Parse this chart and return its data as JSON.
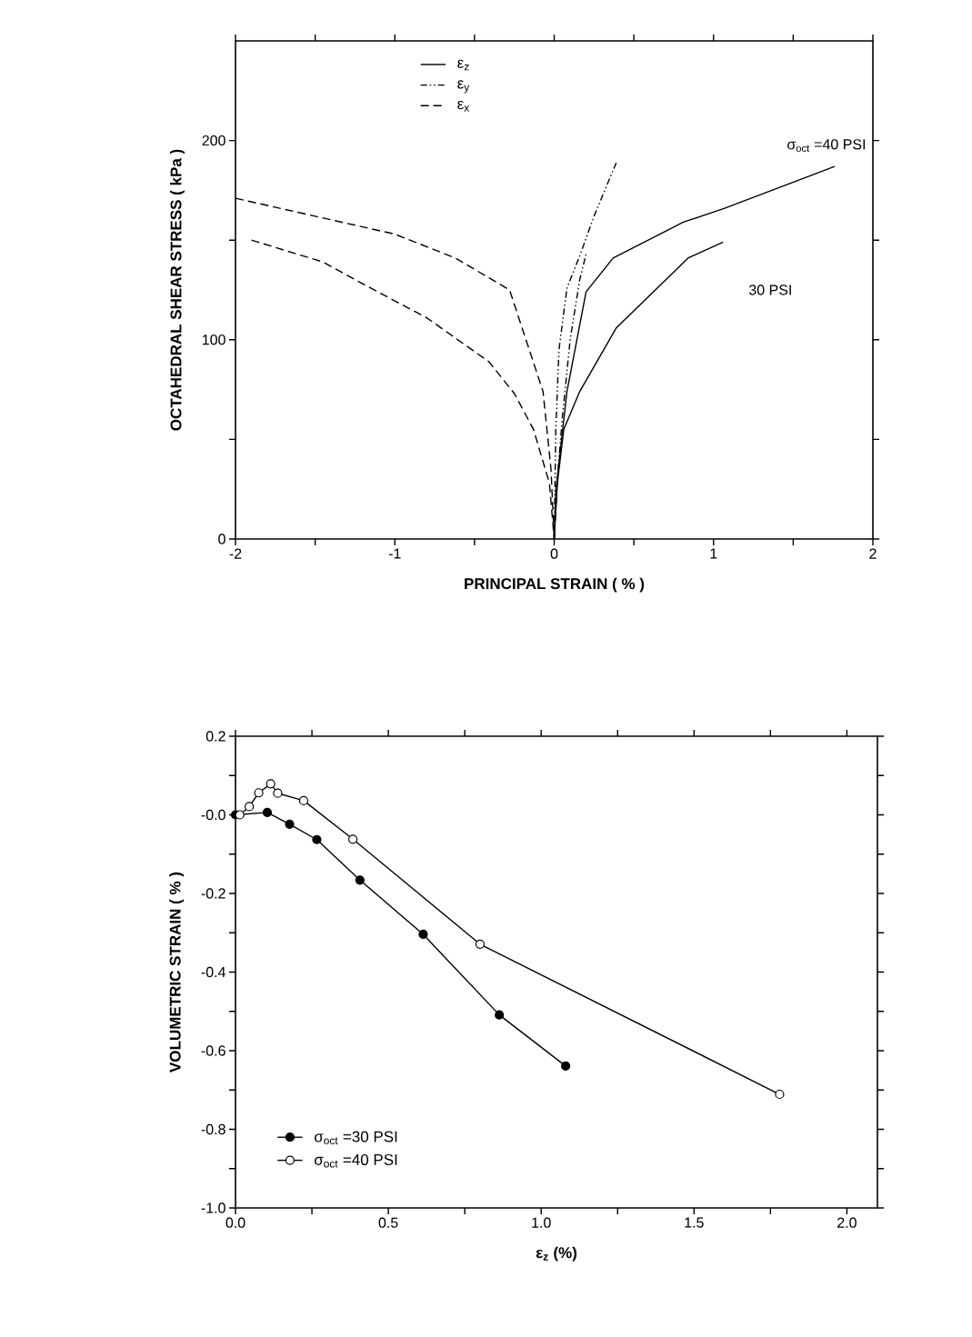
{
  "chart_data": [
    {
      "type": "line",
      "xlabel": "PRINCIPAL STRAIN ( % )",
      "ylabel": "OCTAHEDRAL SHEAR STRESS ( kPa )",
      "xlim": [
        -2,
        2
      ],
      "ylim": [
        0,
        250
      ],
      "xticks": [
        -2,
        {
          "value": -1.5,
          "label": null
        },
        -1,
        {
          "value": -0.5,
          "label": null
        },
        0,
        {
          "value": 0.5,
          "label": null
        },
        1,
        {
          "value": 1.5,
          "label": null
        },
        2
      ],
      "yticks": [
        0,
        {
          "value": 50,
          "label": null
        },
        100,
        {
          "value": 150,
          "label": null
        },
        200
      ],
      "legend": "top",
      "series": [
        {
          "name": "ε$_{z}$",
          "color": "#000000",
          "line_style": "solid",
          "x": [
            0,
            0.01,
            0.08,
            0.2,
            0.37,
            0.81,
            1.07,
            1.76
          ],
          "values": [
            0,
            24,
            74,
            124,
            141,
            159,
            166,
            187
          ]
        },
        {
          "color": "#000000",
          "line_style": "solid",
          "x": [
            0,
            0.02,
            0.06,
            0.16,
            0.39,
            0.84,
            1.06
          ],
          "values": [
            0,
            28,
            55,
            74,
            106,
            141,
            149
          ]
        },
        {
          "name": "ε$_{y}$",
          "color": "#000000",
          "line_style": "dashdotted",
          "x": [
            0,
            0.01,
            0.03,
            0.08,
            0.16,
            0.25,
            0.39
          ],
          "values": [
            0,
            55,
            95,
            126,
            142,
            162,
            189
          ]
        },
        {
          "color": "#000000",
          "line_style": "dashdotted",
          "x": [
            0,
            0.02,
            0.05,
            0.1,
            0.16,
            0.2
          ],
          "values": [
            0,
            30,
            60,
            100,
            130,
            143
          ]
        },
        {
          "name": "ε$_{x}$",
          "color": "#000000",
          "line_style": "dashed",
          "x": [
            -2,
            -1.5,
            -1,
            -0.62,
            -0.28,
            -0.07,
            -0.02,
            0
          ],
          "values": [
            171,
            162,
            153,
            141,
            125,
            74,
            35,
            0
          ]
        },
        {
          "color": "#000000",
          "line_style": "dashed",
          "x": [
            -1.9,
            -1.45,
            -1.2,
            -0.8,
            -0.41,
            -0.25,
            -0.13,
            -0.03,
            0
          ],
          "values": [
            150,
            139,
            128,
            111,
            89,
            73,
            55,
            28,
            0
          ]
        }
      ],
      "annotations": [
        "σ$_{oct}$ =40 PSI",
        "30 PSI"
      ]
    },
    {
      "type": "line",
      "xlabel": "ε$_{z}$ (%)",
      "ylabel": "VOLUMETRIC STRAIN ( % )",
      "xlim": [
        0,
        2.1
      ],
      "ylim": [
        -1,
        0.2
      ],
      "xticks": [
        {
          "value": 0,
          "label": "0.0"
        },
        {
          "value": 0.25,
          "label": null
        },
        0.5,
        {
          "value": 0.75,
          "label": null
        },
        {
          "value": 1,
          "label": "1.0"
        },
        {
          "value": 1.25,
          "label": null
        },
        1.5,
        {
          "value": 1.75,
          "label": null
        },
        {
          "value": 2,
          "label": "2.0"
        }
      ],
      "yticks": [
        {
          "value": -1,
          "label": "-1.0"
        },
        {
          "value": -0.9,
          "label": null
        },
        -0.8,
        {
          "value": -0.7,
          "label": null
        },
        -0.6,
        {
          "value": -0.5,
          "label": null
        },
        -0.4,
        {
          "value": -0.3,
          "label": null
        },
        -0.2,
        {
          "value": -0.1,
          "label": null
        },
        {
          "value": 0,
          "label": "-0.0"
        },
        {
          "value": 0.1,
          "label": null
        },
        0.2
      ],
      "legend": "bottom left",
      "marker": "circle",
      "series": [
        {
          "name": "σ$_{oct}$ =30 PSI",
          "color": "#000000",
          "x": [
            0,
            0.104,
            0.177,
            0.266,
            0.407,
            0.614,
            0.863,
            1.08
          ],
          "values": [
            0,
            0.006,
            -0.024,
            -0.063,
            -0.166,
            -0.304,
            -0.509,
            -0.639
          ]
        },
        {
          "name": "σ$_{oct}$ =40 PSI",
          "color": "#000000",
          "x": [
            0.014,
            0.045,
            0.076,
            0.115,
            0.138,
            0.223,
            0.384,
            0.8,
            1.78
          ],
          "values": [
            0,
            0.021,
            0.056,
            0.079,
            0.055,
            0.036,
            -0.062,
            -0.329,
            -0.711
          ]
        }
      ]
    }
  ]
}
